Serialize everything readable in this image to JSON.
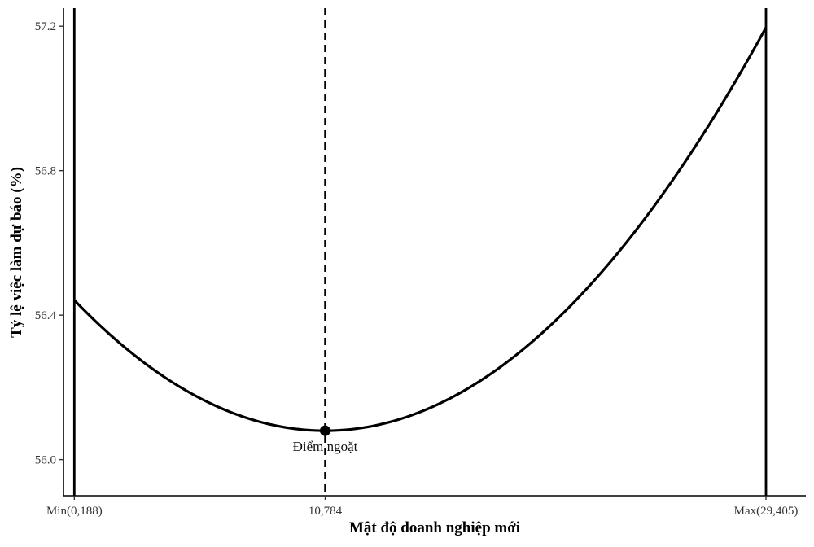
{
  "chart_data": {
    "type": "line",
    "title": "",
    "xlabel": "Mật độ doanh nghiệp mới",
    "ylabel": "Tỷ lệ việc làm dự báo (%)",
    "xlim": [
      -0.27,
      31.09
    ],
    "ylim": [
      55.9,
      57.25
    ],
    "grid": false,
    "x_ticks": [
      {
        "value": 0.188,
        "label": "Min(0,188)"
      },
      {
        "value": 10.784,
        "label": "10,784"
      },
      {
        "value": 29.405,
        "label": "Max(29,405)"
      }
    ],
    "y_ticks": [
      {
        "value": 56.0,
        "label": "56.0"
      },
      {
        "value": 56.4,
        "label": "56.4"
      },
      {
        "value": 56.8,
        "label": "56.8"
      },
      {
        "value": 57.2,
        "label": "57.2"
      }
    ],
    "curve": {
      "form": "quadratic",
      "vertex_x": 10.784,
      "vertex_y": 56.08,
      "coefficient": 0.00322,
      "x_range": [
        0.188,
        29.405
      ]
    },
    "vertical_lines": [
      {
        "x": 0.188,
        "style": "solid"
      },
      {
        "x": 10.784,
        "style": "dashed"
      },
      {
        "x": 29.405,
        "style": "solid"
      }
    ],
    "point": {
      "x": 10.784,
      "y": 56.08,
      "label": "Điểm ngoặt"
    }
  }
}
